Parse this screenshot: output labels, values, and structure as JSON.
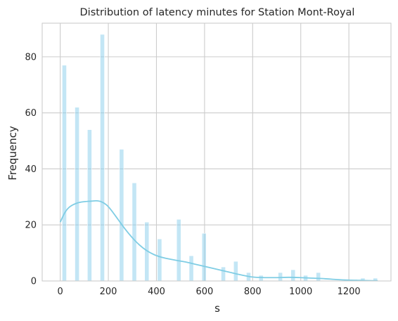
{
  "chart_data": {
    "type": "bar",
    "title": "Distribution of latency minutes for Station Mont-Royal",
    "xlabel": "s",
    "ylabel": "Frequency",
    "xlim": [
      -75,
      1375
    ],
    "ylim": [
      0,
      92
    ],
    "xticks": [
      0,
      200,
      400,
      600,
      800,
      1000,
      1200
    ],
    "yticks": [
      0,
      20,
      40,
      60,
      80
    ],
    "grid": true,
    "bar_color": "#87CEEB",
    "kde_color": "#7FCDE4",
    "grid_color": "#CCCCCC",
    "bins": [
      {
        "x": 17,
        "value": 77
      },
      {
        "x": 70,
        "value": 62
      },
      {
        "x": 122,
        "value": 54
      },
      {
        "x": 175,
        "value": 88
      },
      {
        "x": 255,
        "value": 47
      },
      {
        "x": 308,
        "value": 35
      },
      {
        "x": 360,
        "value": 21
      },
      {
        "x": 413,
        "value": 15
      },
      {
        "x": 493,
        "value": 22
      },
      {
        "x": 545,
        "value": 9
      },
      {
        "x": 598,
        "value": 17
      },
      {
        "x": 678,
        "value": 5
      },
      {
        "x": 730,
        "value": 7
      },
      {
        "x": 783,
        "value": 3
      },
      {
        "x": 835,
        "value": 2
      },
      {
        "x": 915,
        "value": 3
      },
      {
        "x": 968,
        "value": 4
      },
      {
        "x": 1020,
        "value": 2
      },
      {
        "x": 1073,
        "value": 3
      },
      {
        "x": 1153,
        "value": 0
      },
      {
        "x": 1205,
        "value": 0
      },
      {
        "x": 1258,
        "value": 1
      },
      {
        "x": 1310,
        "value": 1
      }
    ],
    "bin_width": 18,
    "kde": {
      "x": [
        0,
        20,
        40,
        70,
        100,
        130,
        150,
        170,
        190,
        210,
        240,
        270,
        300,
        330,
        360,
        390,
        420,
        450,
        480,
        520,
        560,
        600,
        650,
        700,
        750,
        800,
        850,
        900,
        950,
        1000,
        1050,
        1100,
        1150,
        1200,
        1250,
        1300,
        1320
      ],
      "y": [
        21,
        24.5,
        26.5,
        27.8,
        28.3,
        28.5,
        28.6,
        28.3,
        27.3,
        25.5,
        22,
        18.5,
        15.4,
        12.8,
        10.8,
        9.4,
        8.5,
        7.9,
        7.4,
        6.8,
        6,
        5.2,
        4.2,
        3.2,
        2.2,
        1.4,
        1.2,
        1.2,
        1.3,
        1.2,
        1.0,
        0.8,
        0.5,
        0.3,
        0.2,
        0.1,
        0.1
      ]
    }
  }
}
